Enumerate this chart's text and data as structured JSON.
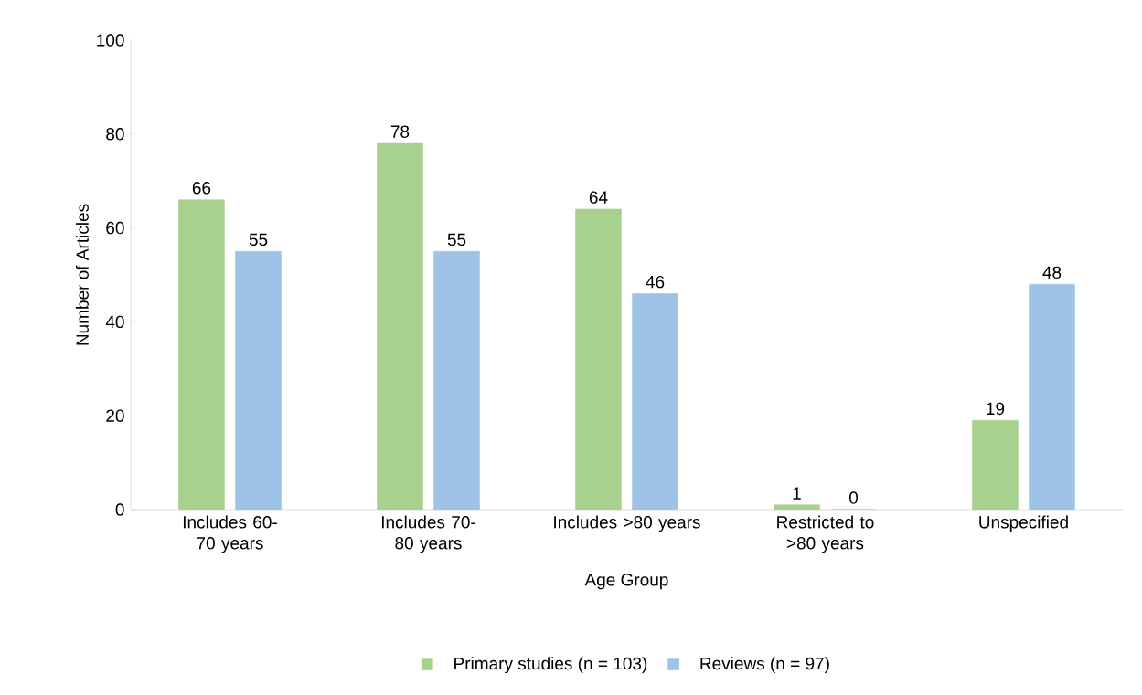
{
  "chart_data": {
    "type": "bar",
    "xlabel": "Age Group",
    "ylabel": "Number of Articles",
    "categories": [
      "Includes 60-70 years",
      "Includes 70-80 years",
      "Includes >80 years",
      "Restricted to >80 years",
      "Unspecified"
    ],
    "series": [
      {
        "name": "Primary studies (n = 103)",
        "color": "#a9d18e",
        "values": [
          66,
          78,
          64,
          1,
          19
        ]
      },
      {
        "name": "Reviews (n = 97)",
        "color": "#9dc3e6",
        "values": [
          55,
          55,
          46,
          0,
          48
        ]
      }
    ],
    "ylim": [
      0,
      100
    ],
    "yticks": [
      0,
      20,
      40,
      60,
      80,
      100
    ],
    "data_labels": true,
    "legend": "bottom"
  }
}
